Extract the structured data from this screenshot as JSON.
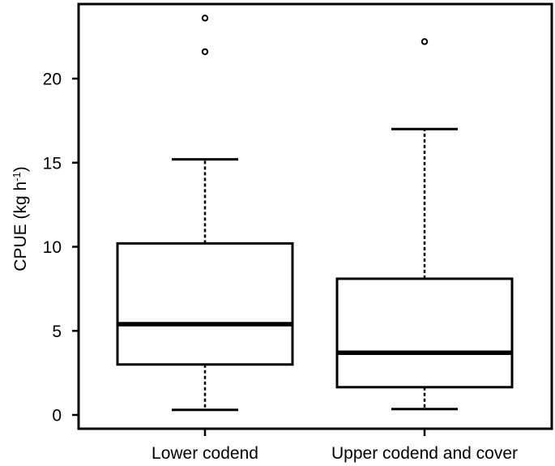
{
  "chart_data": {
    "type": "boxplot",
    "title": "",
    "xlabel": "",
    "ylabel": "CPUE (kg h",
    "ylabel_superscript": "-1",
    "ylabel_suffix": ")",
    "ylim": [
      -0.5,
      24.5
    ],
    "yticks": [
      0,
      5,
      10,
      15,
      20
    ],
    "grid": false,
    "legend": "none",
    "categories": [
      "Lower codend",
      "Upper codend and cover"
    ],
    "boxes": [
      {
        "category": "Lower codend",
        "whisker_low": 0.3,
        "q1": 3.0,
        "median": 5.4,
        "q3": 10.2,
        "whisker_high": 15.2,
        "outliers": [
          21.6,
          23.6
        ]
      },
      {
        "category": "Upper codend and cover",
        "whisker_low": 0.35,
        "q1": 1.65,
        "median": 3.7,
        "q3": 8.1,
        "whisker_high": 17.0,
        "outliers": [
          22.2
        ]
      }
    ]
  },
  "colors": {
    "stroke": "#000000",
    "background": "#ffffff"
  }
}
